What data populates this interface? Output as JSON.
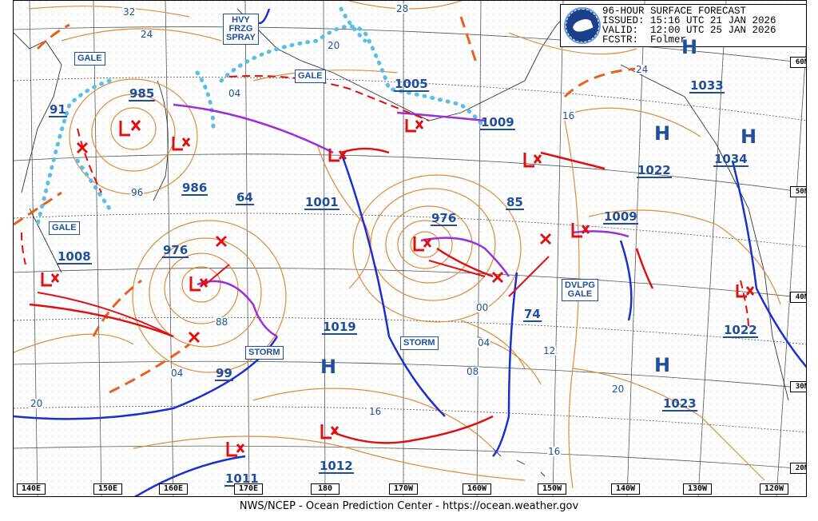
{
  "header": {
    "lines": [
      "96-HOUR SURFACE FORECAST",
      "ISSUED: 15:16 UTC 21 JAN 2026",
      "VALID:  12:00 UTC 25 JAN 2026",
      "FCSTR:  Folmer"
    ]
  },
  "footer": {
    "credit": "NWS/NCEP - Ocean Prediction Center - https://ocean.weather.gov"
  },
  "colors": {
    "isobar": "#e08a3a",
    "cold_front": "#1a2fd0",
    "warm_front": "#e01010",
    "occluded_front": "#9b2fd8",
    "ice_edge": "#5bbde8",
    "label": "#1f4f9c"
  },
  "warning_labels": {
    "gale_nw": "GALE",
    "hvy_frzg_spray": "HVY\nFRZG\nSPRAY",
    "gale_n": "GALE",
    "gale_w": "GALE",
    "dvlpg_gale": "DVLPG\nGALE",
    "storm_w": "STORM",
    "storm_c": "STORM"
  },
  "pressure_centers": {
    "low_985": "985",
    "low_986": "986",
    "low_91": "91",
    "low_1008": "1008",
    "low_976_w": "976",
    "low_976_c": "976",
    "low_1001": "1001",
    "low_64": "64",
    "low_1005": "1005",
    "low_1009_n": "1009",
    "low_85": "85",
    "low_74": "74",
    "low_1009_e": "1009",
    "low_99": "99",
    "low_1011": "1011",
    "low_1012": "1012",
    "high_1019": "1019",
    "high_1022_e": "1022",
    "high_1023": "1023",
    "high_1033": "1033",
    "high_1034": "1034",
    "high_1022_coast": "1022"
  },
  "high_symbol": "H",
  "isobar_labels": {
    "i32": "32",
    "i24_nw": "24",
    "i28": "28",
    "i20_n": "20",
    "i04_n": "04",
    "i16_ne": "16",
    "i24_ne": "24",
    "i96": "96",
    "i88": "88",
    "i04_sw": "04",
    "i00": "00",
    "i04_c": "04",
    "i08": "08",
    "i12": "12",
    "i16_c": "16",
    "i20_w": "20",
    "i20_e": "20",
    "i16_s": "16"
  },
  "longitude_labels": [
    "140E",
    "150E",
    "160E",
    "170E",
    "180",
    "170W",
    "160W",
    "150W",
    "140W",
    "130W",
    "120W"
  ],
  "latitude_labels": [
    "60N",
    "50N",
    "40N",
    "30N",
    "20N"
  ]
}
